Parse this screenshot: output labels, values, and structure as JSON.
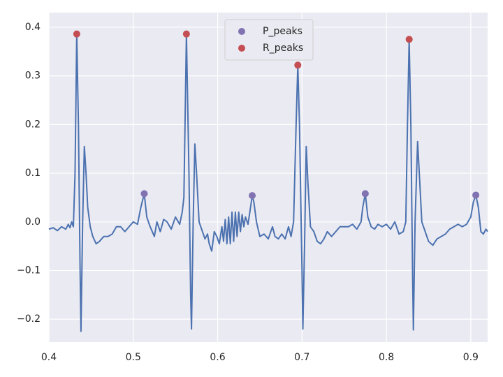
{
  "chart_data": {
    "type": "line",
    "xlim": [
      0.4,
      0.92
    ],
    "ylim": [
      -0.247,
      0.43
    ],
    "xticks": [
      0.4,
      0.5,
      0.6,
      0.7,
      0.8,
      0.9
    ],
    "yticks": [
      {
        "value": -0.2,
        "label": "−0.2"
      },
      {
        "value": -0.1,
        "label": "−0.1"
      },
      {
        "value": 0,
        "label": "0.0"
      },
      0.1,
      0.2,
      0.3,
      0.4
    ],
    "grid": true,
    "legend": "upper center",
    "background": "#eaeaf2",
    "signal": {
      "color": "#4c72b0",
      "x": [
        0.4,
        0.405,
        0.41,
        0.415,
        0.42,
        0.423,
        0.425,
        0.427,
        0.429,
        0.431,
        0.433,
        0.435,
        0.437,
        0.438,
        0.44,
        0.442,
        0.444,
        0.446,
        0.449,
        0.452,
        0.456,
        0.46,
        0.465,
        0.47,
        0.475,
        0.48,
        0.485,
        0.49,
        0.495,
        0.5,
        0.505,
        0.509,
        0.513,
        0.516,
        0.52,
        0.525,
        0.528,
        0.532,
        0.536,
        0.54,
        0.545,
        0.55,
        0.555,
        0.558,
        0.56,
        0.563,
        0.566,
        0.568,
        0.569,
        0.571,
        0.573,
        0.575,
        0.578,
        0.582,
        0.585,
        0.588,
        0.59,
        0.593,
        0.596,
        0.599,
        0.602,
        0.605,
        0.607,
        0.609,
        0.611,
        0.613,
        0.615,
        0.617,
        0.619,
        0.621,
        0.623,
        0.625,
        0.627,
        0.629,
        0.631,
        0.633,
        0.636,
        0.639,
        0.641,
        0.643,
        0.646,
        0.65,
        0.655,
        0.66,
        0.665,
        0.668,
        0.672,
        0.676,
        0.68,
        0.684,
        0.687,
        0.69,
        0.693,
        0.695,
        0.697,
        0.7,
        0.701,
        0.703,
        0.705,
        0.707,
        0.71,
        0.714,
        0.718,
        0.722,
        0.726,
        0.73,
        0.735,
        0.74,
        0.745,
        0.75,
        0.755,
        0.76,
        0.765,
        0.77,
        0.772,
        0.775,
        0.778,
        0.782,
        0.786,
        0.79,
        0.795,
        0.8,
        0.805,
        0.81,
        0.815,
        0.82,
        0.823,
        0.825,
        0.827,
        0.829,
        0.831,
        0.832,
        0.834,
        0.837,
        0.839,
        0.842,
        0.846,
        0.85,
        0.855,
        0.86,
        0.865,
        0.87,
        0.875,
        0.88,
        0.885,
        0.89,
        0.895,
        0.9,
        0.903,
        0.906,
        0.909,
        0.912,
        0.915,
        0.918,
        0.92
      ],
      "values": [
        -0.015,
        -0.012,
        -0.018,
        -0.01,
        -0.015,
        -0.005,
        -0.012,
        0.0,
        -0.01,
        0.1,
        0.386,
        0.2,
        -0.1,
        -0.225,
        0.0,
        0.155,
        0.1,
        0.03,
        -0.01,
        -0.03,
        -0.045,
        -0.04,
        -0.03,
        -0.03,
        -0.025,
        -0.01,
        -0.01,
        -0.02,
        -0.01,
        0.0,
        -0.005,
        0.03,
        0.058,
        0.01,
        -0.01,
        -0.03,
        0.0,
        -0.02,
        0.005,
        0.0,
        -0.015,
        0.01,
        -0.005,
        0.02,
        0.05,
        0.386,
        0.1,
        -0.15,
        -0.22,
        0.0,
        0.16,
        0.1,
        0.0,
        -0.02,
        -0.035,
        -0.025,
        -0.045,
        -0.06,
        -0.02,
        -0.03,
        -0.045,
        -0.01,
        -0.04,
        0.005,
        -0.045,
        0.01,
        -0.045,
        0.02,
        -0.04,
        0.02,
        -0.03,
        0.02,
        -0.02,
        0.015,
        -0.01,
        0.01,
        -0.005,
        0.03,
        0.054,
        0.04,
        0.0,
        -0.03,
        -0.025,
        -0.035,
        -0.01,
        -0.03,
        -0.035,
        -0.025,
        -0.035,
        -0.01,
        -0.03,
        0.0,
        0.2,
        0.322,
        0.2,
        -0.1,
        -0.22,
        -0.05,
        0.155,
        0.08,
        -0.01,
        -0.02,
        -0.04,
        -0.045,
        -0.035,
        -0.02,
        -0.03,
        -0.02,
        -0.01,
        -0.01,
        -0.01,
        -0.005,
        -0.015,
        0.0,
        0.03,
        0.058,
        0.01,
        -0.01,
        -0.015,
        -0.005,
        -0.01,
        -0.005,
        -0.015,
        0.0,
        -0.025,
        -0.02,
        0.0,
        0.2,
        0.375,
        0.2,
        -0.1,
        -0.222,
        0.0,
        0.165,
        0.1,
        0.0,
        -0.02,
        -0.04,
        -0.048,
        -0.035,
        -0.03,
        -0.025,
        -0.015,
        -0.01,
        -0.005,
        -0.01,
        -0.005,
        0.01,
        0.04,
        0.055,
        0.03,
        -0.02,
        -0.025,
        -0.015,
        -0.02
      ]
    },
    "series": [
      {
        "name": "P_peaks",
        "color": "#8172b2",
        "x": [
          0.513,
          0.641,
          0.775,
          0.906
        ],
        "values": [
          0.058,
          0.054,
          0.058,
          0.055
        ]
      },
      {
        "name": "R_peaks",
        "color": "#c44e52",
        "x": [
          0.433,
          0.563,
          0.695,
          0.827
        ],
        "values": [
          0.386,
          0.386,
          0.322,
          0.375
        ]
      }
    ]
  }
}
